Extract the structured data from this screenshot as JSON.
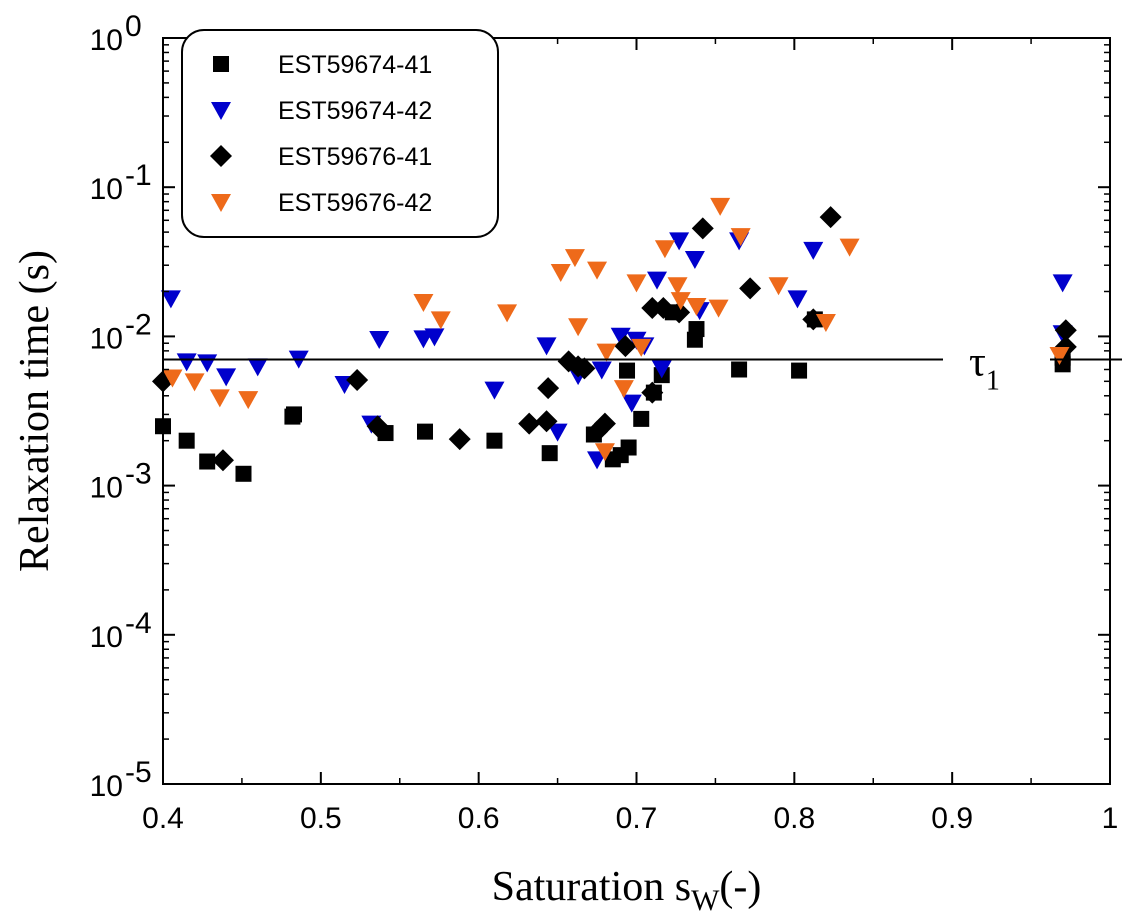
{
  "chart_data": {
    "type": "scatter",
    "xlabel": "Saturation s",
    "xlabel_sub": "W",
    "xlabel_suffix": "(-)",
    "ylabel": "Relaxation time (s)",
    "xlim": [
      0.4,
      1.0
    ],
    "ylim": [
      1e-05,
      1
    ],
    "yscale": "log",
    "grid": false,
    "legend_position": "top-left",
    "x_ticks": [
      "0.4",
      "0.5",
      "0.6",
      "0.7",
      "0.8",
      "0.9",
      "1"
    ],
    "y_ticks": [
      {
        "base": "10",
        "exp": "0"
      },
      {
        "base": "10",
        "exp": "-1"
      },
      {
        "base": "10",
        "exp": "-2"
      },
      {
        "base": "10",
        "exp": "-3"
      },
      {
        "base": "10",
        "exp": "-4"
      },
      {
        "base": "10",
        "exp": "-5"
      }
    ],
    "reference_line": {
      "label": "τ",
      "label_sub": "1",
      "y": 0.007
    },
    "series": [
      {
        "name": "EST59674-41",
        "marker": "square",
        "color": "#000000",
        "points": [
          [
            0.4,
            0.0025
          ],
          [
            0.415,
            0.002
          ],
          [
            0.428,
            0.00145
          ],
          [
            0.451,
            0.0012
          ],
          [
            0.482,
            0.0029
          ],
          [
            0.483,
            0.003
          ],
          [
            0.541,
            0.00225
          ],
          [
            0.566,
            0.0023
          ],
          [
            0.61,
            0.002
          ],
          [
            0.645,
            0.00165
          ],
          [
            0.673,
            0.0022
          ],
          [
            0.685,
            0.0015
          ],
          [
            0.69,
            0.0016
          ],
          [
            0.695,
            0.0018
          ],
          [
            0.694,
            0.0059
          ],
          [
            0.703,
            0.0028
          ],
          [
            0.711,
            0.0042
          ],
          [
            0.716,
            0.0055
          ],
          [
            0.723,
            0.0145
          ],
          [
            0.737,
            0.0095
          ],
          [
            0.738,
            0.0112
          ],
          [
            0.765,
            0.006
          ],
          [
            0.803,
            0.0059
          ],
          [
            0.813,
            0.013
          ],
          [
            0.97,
            0.0065
          ],
          [
            0.97,
            0.0072
          ]
        ]
      },
      {
        "name": "EST59674-42",
        "marker": "triangle-down",
        "color": "#0000cc",
        "points": [
          [
            0.405,
            0.018
          ],
          [
            0.415,
            0.0068
          ],
          [
            0.428,
            0.0067
          ],
          [
            0.44,
            0.0054
          ],
          [
            0.46,
            0.0063
          ],
          [
            0.486,
            0.0071
          ],
          [
            0.515,
            0.0048
          ],
          [
            0.532,
            0.0026
          ],
          [
            0.537,
            0.0096
          ],
          [
            0.565,
            0.0097
          ],
          [
            0.572,
            0.01
          ],
          [
            0.61,
            0.0044
          ],
          [
            0.643,
            0.0087
          ],
          [
            0.65,
            0.0023
          ],
          [
            0.663,
            0.0055
          ],
          [
            0.675,
            0.0015
          ],
          [
            0.678,
            0.006
          ],
          [
            0.69,
            0.0101
          ],
          [
            0.697,
            0.0036
          ],
          [
            0.7,
            0.0095
          ],
          [
            0.705,
            0.0087
          ],
          [
            0.713,
            0.024
          ],
          [
            0.716,
            0.0061
          ],
          [
            0.727,
            0.044
          ],
          [
            0.737,
            0.033
          ],
          [
            0.74,
            0.015
          ],
          [
            0.765,
            0.044
          ],
          [
            0.802,
            0.018
          ],
          [
            0.812,
            0.038
          ],
          [
            0.97,
            0.023
          ],
          [
            0.97,
            0.0105
          ]
        ]
      },
      {
        "name": "EST59676-41",
        "marker": "diamond",
        "color": "#000000",
        "points": [
          [
            0.4,
            0.005
          ],
          [
            0.438,
            0.00148
          ],
          [
            0.523,
            0.0051
          ],
          [
            0.536,
            0.0025
          ],
          [
            0.588,
            0.00205
          ],
          [
            0.632,
            0.0026
          ],
          [
            0.643,
            0.0027
          ],
          [
            0.644,
            0.0045
          ],
          [
            0.657,
            0.0068
          ],
          [
            0.663,
            0.0063
          ],
          [
            0.667,
            0.0061
          ],
          [
            0.675,
            0.0023
          ],
          [
            0.68,
            0.0026
          ],
          [
            0.693,
            0.0086
          ],
          [
            0.71,
            0.0042
          ],
          [
            0.71,
            0.0155
          ],
          [
            0.717,
            0.0155
          ],
          [
            0.727,
            0.0145
          ],
          [
            0.742,
            0.053
          ],
          [
            0.772,
            0.021
          ],
          [
            0.812,
            0.013
          ],
          [
            0.823,
            0.063
          ],
          [
            0.972,
            0.011
          ],
          [
            0.972,
            0.0085
          ]
        ]
      },
      {
        "name": "EST59676-42",
        "marker": "triangle-down",
        "color": "#ee6a1a",
        "points": [
          [
            0.406,
            0.0053
          ],
          [
            0.42,
            0.005
          ],
          [
            0.436,
            0.0039
          ],
          [
            0.454,
            0.0038
          ],
          [
            0.565,
            0.017
          ],
          [
            0.576,
            0.013
          ],
          [
            0.618,
            0.0145
          ],
          [
            0.652,
            0.027
          ],
          [
            0.661,
            0.034
          ],
          [
            0.663,
            0.0117
          ],
          [
            0.675,
            0.028
          ],
          [
            0.681,
            0.0079
          ],
          [
            0.68,
            0.0017
          ],
          [
            0.692,
            0.0045
          ],
          [
            0.7,
            0.023
          ],
          [
            0.703,
            0.0085
          ],
          [
            0.718,
            0.039
          ],
          [
            0.726,
            0.022
          ],
          [
            0.728,
            0.0175
          ],
          [
            0.738,
            0.016
          ],
          [
            0.752,
            0.0156
          ],
          [
            0.753,
            0.075
          ],
          [
            0.766,
            0.047
          ],
          [
            0.79,
            0.022
          ],
          [
            0.82,
            0.0125
          ],
          [
            0.835,
            0.04
          ],
          [
            0.968,
            0.0075
          ]
        ]
      }
    ]
  }
}
